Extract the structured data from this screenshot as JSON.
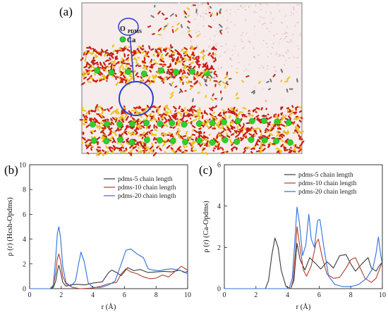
{
  "figure": {
    "panel_a": {
      "letter": "(a)",
      "atom_label_1": "O",
      "atom_label_1_sub": "PDMS",
      "atom_label_2": "Ca",
      "colors": {
        "water_bg": "#f6eceb",
        "silicate_red": "#c81e14",
        "silicon_yellow": "#e8c31a",
        "calcium_green": "#2ed12b",
        "carbon_grey": "#6f6f6f",
        "hydrogen_white": "#e9e9e9",
        "circle_blue": "#2a3ccf",
        "frame": "#7a7a7a"
      }
    }
  },
  "chart_data": [
    {
      "type": "line",
      "panel": "(b)",
      "ylabel": "ρ (r) (Hcsh-Opdms)",
      "xlabel": "r (Å)",
      "xlim": [
        0,
        10
      ],
      "ylim": [
        0,
        10
      ],
      "xticks": [
        "0",
        "2",
        "4",
        "6",
        "8",
        "10"
      ],
      "yticks": [
        "0",
        "2",
        "4",
        "6",
        "8",
        "10"
      ],
      "legend_position": "top-right",
      "grid": false,
      "series": [
        {
          "name": "pdms-5 chain length",
          "color": "#3a3a3a",
          "points": [
            [
              0,
              0
            ],
            [
              1.3,
              0
            ],
            [
              1.5,
              0.1
            ],
            [
              1.65,
              0.6
            ],
            [
              1.75,
              1.4
            ],
            [
              1.85,
              1.9
            ],
            [
              1.95,
              1.4
            ],
            [
              2.1,
              0.5
            ],
            [
              2.3,
              0.2
            ],
            [
              2.6,
              0.3
            ],
            [
              3.0,
              0.35
            ],
            [
              3.5,
              0.3
            ],
            [
              4.0,
              0.45
            ],
            [
              4.6,
              0.55
            ],
            [
              5.0,
              1.3
            ],
            [
              5.2,
              1.5
            ],
            [
              5.5,
              1.3
            ],
            [
              5.8,
              1.05
            ],
            [
              6.2,
              1.7
            ],
            [
              6.6,
              1.45
            ],
            [
              7.0,
              1.55
            ],
            [
              7.5,
              1.3
            ],
            [
              8.0,
              1.35
            ],
            [
              8.5,
              1.4
            ],
            [
              9.0,
              1.35
            ],
            [
              9.5,
              1.5
            ],
            [
              9.8,
              1.3
            ],
            [
              10,
              1.4
            ]
          ]
        },
        {
          "name": "pdms-10 chain length",
          "color": "#b0402c",
          "points": [
            [
              0,
              0
            ],
            [
              1.3,
              0
            ],
            [
              1.5,
              0.2
            ],
            [
              1.65,
              1.3
            ],
            [
              1.75,
              2.4
            ],
            [
              1.85,
              2.8
            ],
            [
              1.95,
              2.3
            ],
            [
              2.1,
              1.0
            ],
            [
              2.3,
              0.4
            ],
            [
              2.7,
              0.1
            ],
            [
              3.2,
              0
            ],
            [
              4.0,
              0.05
            ],
            [
              4.5,
              0.2
            ],
            [
              5.0,
              0.4
            ],
            [
              5.5,
              0.5
            ],
            [
              5.8,
              1.2
            ],
            [
              6.1,
              1.6
            ],
            [
              6.4,
              1.35
            ],
            [
              6.8,
              1.2
            ],
            [
              7.2,
              0.95
            ],
            [
              7.6,
              0.8
            ],
            [
              8.0,
              0.85
            ],
            [
              8.4,
              1.1
            ],
            [
              8.8,
              0.95
            ],
            [
              9.2,
              1.4
            ],
            [
              9.6,
              1.8
            ],
            [
              10,
              1.5
            ]
          ]
        },
        {
          "name": "pdms-20 chain length",
          "color": "#2f6fdc",
          "points": [
            [
              0,
              0
            ],
            [
              1.3,
              0
            ],
            [
              1.5,
              0.3
            ],
            [
              1.65,
              2.5
            ],
            [
              1.75,
              4.4
            ],
            [
              1.85,
              5.0
            ],
            [
              1.95,
              4.2
            ],
            [
              2.1,
              1.8
            ],
            [
              2.3,
              0.5
            ],
            [
              2.6,
              0.2
            ],
            [
              2.9,
              0.6
            ],
            [
              3.1,
              2.0
            ],
            [
              3.25,
              2.95
            ],
            [
              3.45,
              2.2
            ],
            [
              3.7,
              0.5
            ],
            [
              4.0,
              0.1
            ],
            [
              4.5,
              0.1
            ],
            [
              5.0,
              0.3
            ],
            [
              5.4,
              0.6
            ],
            [
              5.8,
              2.0
            ],
            [
              6.1,
              3.1
            ],
            [
              6.4,
              3.2
            ],
            [
              6.8,
              2.8
            ],
            [
              7.2,
              2.5
            ],
            [
              7.5,
              1.6
            ],
            [
              7.8,
              1.5
            ],
            [
              8.2,
              1.45
            ],
            [
              8.6,
              1.55
            ],
            [
              9.0,
              1.6
            ],
            [
              9.4,
              1.5
            ],
            [
              9.7,
              1.4
            ],
            [
              10,
              1.2
            ]
          ]
        }
      ]
    },
    {
      "type": "line",
      "panel": "(c)",
      "ylabel": "ρ (r) (Ca-Opdms)",
      "xlabel": "r (Å)",
      "xlim": [
        0,
        10
      ],
      "ylim": [
        0,
        6
      ],
      "xticks": [
        "0",
        "2",
        "4",
        "6",
        "8",
        "10"
      ],
      "yticks": [
        "0",
        "2",
        "4",
        "6"
      ],
      "legend_position": "top-right",
      "grid": false,
      "series": [
        {
          "name": "pdms-5 chain length",
          "color": "#3a3a3a",
          "points": [
            [
              0,
              0
            ],
            [
              2.6,
              0
            ],
            [
              2.8,
              0.4
            ],
            [
              3.0,
              1.6
            ],
            [
              3.2,
              2.45
            ],
            [
              3.4,
              2.0
            ],
            [
              3.6,
              0.9
            ],
            [
              3.9,
              0.1
            ],
            [
              4.2,
              0
            ],
            [
              4.4,
              0.4
            ],
            [
              4.6,
              2.2
            ],
            [
              4.8,
              1.4
            ],
            [
              5.1,
              0.9
            ],
            [
              5.4,
              1.5
            ],
            [
              5.8,
              1.2
            ],
            [
              6.1,
              0.95
            ],
            [
              6.5,
              1.3
            ],
            [
              6.9,
              1.0
            ],
            [
              7.3,
              1.6
            ],
            [
              7.7,
              1.65
            ],
            [
              8.0,
              1.2
            ],
            [
              8.3,
              0.85
            ],
            [
              8.7,
              1.2
            ],
            [
              9.1,
              1.5
            ],
            [
              9.3,
              1.0
            ],
            [
              9.6,
              0.85
            ],
            [
              9.8,
              1.1
            ],
            [
              10,
              1.3
            ]
          ]
        },
        {
          "name": "pdms-10 chain length",
          "color": "#b0402c",
          "points": [
            [
              0,
              0
            ],
            [
              4.2,
              0
            ],
            [
              4.35,
              0.4
            ],
            [
              4.5,
              1.8
            ],
            [
              4.6,
              3.0
            ],
            [
              4.75,
              2.2
            ],
            [
              5.0,
              0.9
            ],
            [
              5.2,
              0.6
            ],
            [
              5.5,
              1.1
            ],
            [
              5.8,
              2.2
            ],
            [
              5.95,
              2.4
            ],
            [
              6.2,
              1.5
            ],
            [
              6.5,
              0.7
            ],
            [
              6.9,
              0.5
            ],
            [
              7.3,
              0.55
            ],
            [
              7.7,
              1.0
            ],
            [
              8.0,
              1.4
            ],
            [
              8.3,
              1.5
            ],
            [
              8.6,
              1.0
            ],
            [
              8.9,
              0.5
            ],
            [
              9.3,
              0.3
            ],
            [
              9.6,
              0.5
            ],
            [
              10,
              1.3
            ]
          ]
        },
        {
          "name": "pdms-20 chain length",
          "color": "#2f6fdc",
          "points": [
            [
              0,
              0
            ],
            [
              4.1,
              0
            ],
            [
              4.3,
              0.5
            ],
            [
              4.45,
              2.2
            ],
            [
              4.6,
              3.95
            ],
            [
              4.75,
              3.2
            ],
            [
              4.95,
              1.6
            ],
            [
              5.15,
              2.1
            ],
            [
              5.35,
              3.6
            ],
            [
              5.5,
              2.4
            ],
            [
              5.7,
              2.0
            ],
            [
              5.9,
              3.3
            ],
            [
              6.05,
              3.35
            ],
            [
              6.3,
              2.0
            ],
            [
              6.6,
              0.6
            ],
            [
              7.0,
              0.2
            ],
            [
              7.5,
              0.1
            ],
            [
              8.0,
              0.1
            ],
            [
              8.5,
              0.2
            ],
            [
              9.0,
              0.5
            ],
            [
              9.4,
              1.0
            ],
            [
              9.6,
              1.7
            ],
            [
              9.75,
              2.5
            ],
            [
              9.9,
              1.6
            ],
            [
              10,
              1.2
            ]
          ]
        }
      ]
    }
  ]
}
